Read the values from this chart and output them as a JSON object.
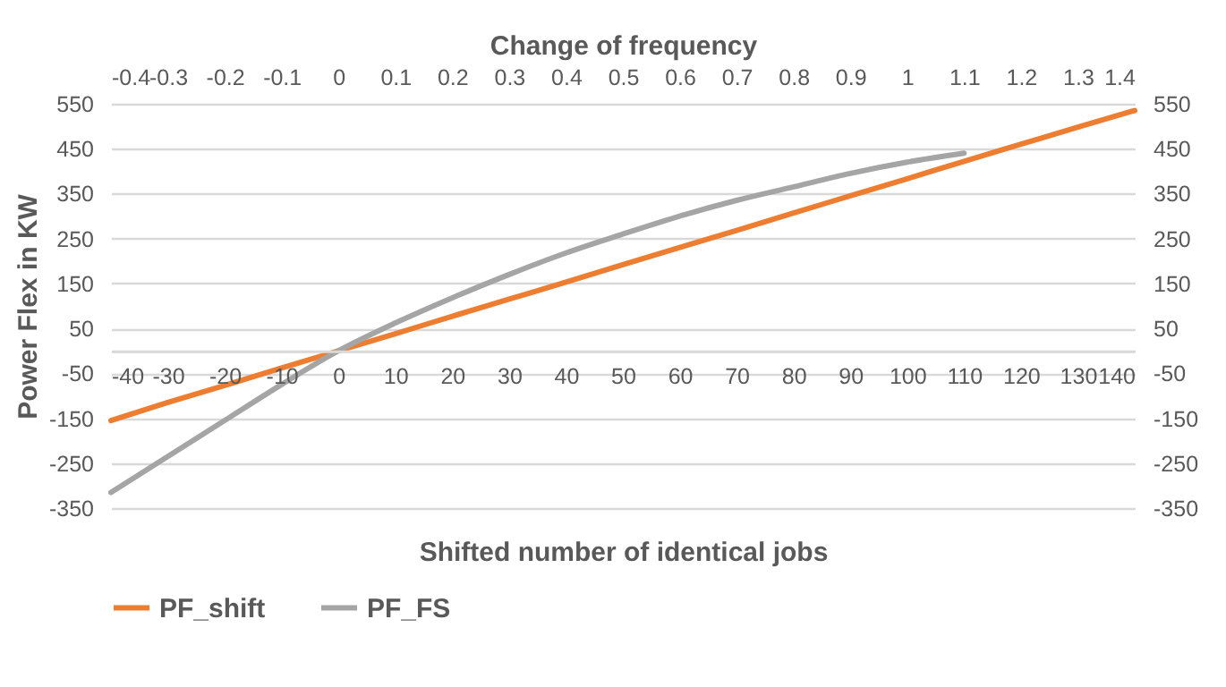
{
  "chart_data": {
    "type": "line",
    "xlabel": "Shifted number of identical jobs",
    "ylabel": "Power Flex  in KW",
    "x2label": "Change of frequency",
    "x": [
      -40,
      -30,
      -20,
      -10,
      0,
      10,
      20,
      30,
      40,
      50,
      60,
      70,
      80,
      90,
      100,
      110,
      120,
      130,
      140
    ],
    "series": [
      {
        "name": "PF_shift",
        "color": "#ed7d31",
        "values": [
          -155,
          -115,
          -77,
          -38,
          0,
          38,
          77,
          115,
          153,
          192,
          230,
          268,
          307,
          345,
          383,
          422,
          460,
          498,
          535
        ]
      },
      {
        "name": "PF_FS",
        "color": "#a5a5a5",
        "values": [
          -315,
          -235,
          -155,
          -75,
          0,
          62,
          118,
          170,
          218,
          260,
          300,
          335,
          365,
          395,
          420,
          440,
          null,
          null,
          null
        ]
      }
    ],
    "xlim": [
      -40,
      140
    ],
    "xticks": [
      -40,
      -30,
      -20,
      -10,
      0,
      10,
      20,
      30,
      40,
      50,
      60,
      70,
      80,
      90,
      100,
      110,
      120,
      130,
      140
    ],
    "x2lim": [
      -0.4,
      1.4
    ],
    "x2ticks": [
      -0.4,
      -0.3,
      -0.2,
      -0.1,
      0,
      0.1,
      0.2,
      0.3,
      0.4,
      0.5,
      0.6,
      0.7,
      0.8,
      0.9,
      1,
      1.1,
      1.2,
      1.3,
      1.4
    ],
    "ylim": [
      -350,
      550
    ],
    "yticks": [
      -350,
      -250,
      -150,
      -50,
      50,
      150,
      250,
      350,
      450,
      550
    ],
    "y2lim": [
      -350,
      550
    ],
    "y2ticks": [
      -350,
      -250,
      -150,
      -50,
      50,
      150,
      250,
      350,
      450,
      550
    ],
    "grid": "y",
    "legend": "bottom"
  }
}
